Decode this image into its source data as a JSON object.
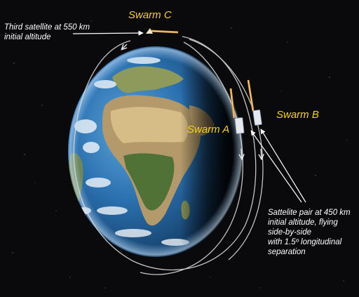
{
  "accent_color": "#f2d21b",
  "labels": {
    "swarm_c": "Swarm C",
    "swarm_a": "Swarm A",
    "swarm_b": "Swarm B"
  },
  "annotations": {
    "third_satellite": [
      "Third satellite at 550 km",
      "initial altitude"
    ],
    "satellite_pair": [
      "Sattelite pair at 450 km",
      "initial altitude, flying",
      "side-by-side",
      "with 1.5º longitudinal",
      "separation"
    ]
  },
  "objects": {
    "planet": "earth-globe",
    "satellites": [
      "satellite-swarm-c",
      "satellite-swarm-a",
      "satellite-swarm-b"
    ],
    "orbits": [
      "orbit-swarm-c",
      "orbit-swarm-a",
      "orbit-swarm-b"
    ]
  }
}
